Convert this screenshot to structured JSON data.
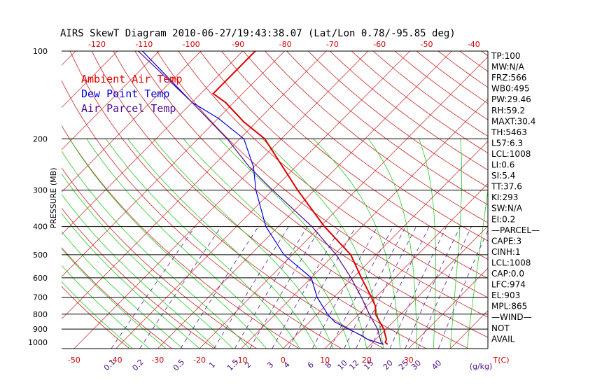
{
  "chart_data": {
    "type": "line",
    "title": "AIRS SkewT Diagram 2010-06-27/19:43:38.07 (Lat/Lon 0.78/-95.85 deg)",
    "ylabel": "PRESSURE (MB)",
    "xlabel_bottom": "T(C)",
    "mixing_ratio_unit": "(g/kg)",
    "y_scale": "log",
    "ylim": [
      1050,
      100
    ],
    "xlim_at_bottom": [
      -53,
      49
    ],
    "pressure_ticks": [
      100,
      200,
      300,
      400,
      500,
      600,
      700,
      800,
      900,
      1000
    ],
    "isobar_lines": [
      200,
      300,
      400,
      500,
      600,
      700,
      800,
      900
    ],
    "top_temp_ticks": [
      -120,
      -110,
      -100,
      -90,
      -80,
      -70,
      -60,
      -50,
      -40
    ],
    "bottom_temp_ticks": [
      -50,
      -40,
      -30,
      -20,
      -10,
      0,
      10,
      20,
      30
    ],
    "mixing_ratio_labels": [
      0.1,
      0.2,
      0.5,
      1,
      1.5,
      2,
      3,
      4,
      6,
      8,
      10,
      12,
      15,
      20,
      25,
      30,
      40
    ],
    "legend": [
      {
        "name": "Ambient Air Temp",
        "color": "#e00000"
      },
      {
        "name": "Dew Point Temp",
        "color": "#0000e0"
      },
      {
        "name": "Air Parcel Temp",
        "color": "#4a0a8a"
      }
    ],
    "series": [
      {
        "name": "Ambient Air Temp",
        "color": "#e00000",
        "points": [
          [
            1015,
            24
          ],
          [
            1000,
            23
          ],
          [
            975,
            22.5
          ],
          [
            950,
            21.5
          ],
          [
            925,
            20.5
          ],
          [
            900,
            19.5
          ],
          [
            850,
            16.8
          ],
          [
            800,
            14
          ],
          [
            750,
            12
          ],
          [
            700,
            9
          ],
          [
            600,
            2
          ],
          [
            500,
            -6
          ],
          [
            400,
            -19
          ],
          [
            300,
            -34
          ],
          [
            250,
            -43
          ],
          [
            200,
            -54
          ],
          [
            175,
            -63
          ],
          [
            150,
            -72
          ],
          [
            140,
            -77
          ],
          [
            100,
            -77
          ]
        ]
      },
      {
        "name": "Dew Point Temp",
        "color": "#0000e0",
        "points": [
          [
            1015,
            23
          ],
          [
            1000,
            21
          ],
          [
            975,
            18
          ],
          [
            950,
            16
          ],
          [
            900,
            11
          ],
          [
            850,
            6
          ],
          [
            800,
            2.5
          ],
          [
            700,
            -4
          ],
          [
            600,
            -10
          ],
          [
            500,
            -22
          ],
          [
            400,
            -33
          ],
          [
            300,
            -44
          ],
          [
            250,
            -50
          ],
          [
            200,
            -59
          ],
          [
            170,
            -70
          ],
          [
            150,
            -80
          ],
          [
            100,
            -104
          ]
        ]
      },
      {
        "name": "Air Parcel Temp",
        "color": "#4a0a8a",
        "points": [
          [
            1015,
            23
          ],
          [
            1000,
            22
          ],
          [
            900,
            18
          ],
          [
            800,
            12.5
          ],
          [
            700,
            6.6
          ],
          [
            600,
            -0.5
          ],
          [
            500,
            -9.5
          ],
          [
            400,
            -22
          ],
          [
            300,
            -40
          ],
          [
            250,
            -51
          ],
          [
            200,
            -63
          ],
          [
            150,
            -80
          ],
          [
            100,
            -105
          ]
        ]
      }
    ]
  },
  "indices": [
    "TP:100",
    "MW:N/A",
    "FRZ:566",
    "WB0:495",
    "PW:29.46",
    "RH:59.2",
    "MAXT:30.4",
    "TH:5463",
    "L57:6.3",
    "LCL:1008",
    "LI:0.6",
    "SI:5.4",
    "TT:37.6",
    "KI:293",
    "SW:N/A",
    "EI:0.2",
    "—PARCEL—",
    "CAPE:3",
    "CINH:1",
    "LCL:1008",
    "CAP:0.0",
    "LFC:974",
    "EL:903",
    "MPL:865",
    "—WIND—",
    "NOT",
    "AVAIL"
  ],
  "colors": {
    "dry_adiabat": "#cc2222",
    "moist_adiabat": "#22cc22",
    "mixing_ratio": "#5a1a9a",
    "isobar": "#000000",
    "tick_label_red": "#cc0000",
    "tick_label_purple": "#4a0a8a"
  }
}
